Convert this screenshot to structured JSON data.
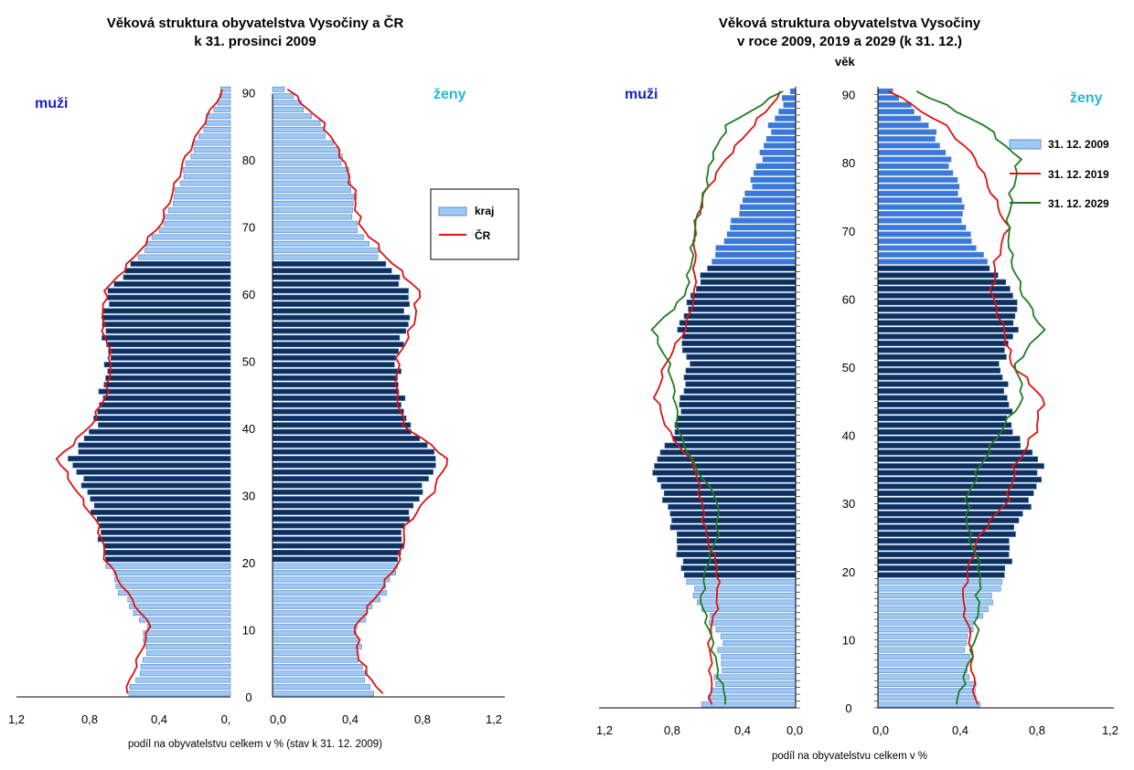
{
  "colors": {
    "bar_light": "#9ec9f5",
    "bar_light_edge": "#5d8fd0",
    "bar_dark": "#0f2f5c",
    "bar_dark_edge": "#2c5f9e",
    "bar_mid": "#3a78dc",
    "line_red": "#e01010",
    "line_green": "#1d7d1d",
    "muzi_label": "#1a22c8",
    "zeny_label": "#27b7d6",
    "axis": "#000000"
  },
  "chart_data": [
    {
      "type": "bar",
      "subtype": "population-pyramid",
      "title": "Věková struktura obyvatelstva Vysočiny a ČR",
      "subtitle": "k 31. prosinci 2009",
      "xlabel": "podíl na obyvatelstvu celkem v % (stav k 31. 12. 2009)",
      "ylabel": "",
      "side_labels": {
        "left": "muži",
        "right": "ženy"
      },
      "left_ticks": [
        "1,2",
        "0,8",
        "0,4",
        "0,"
      ],
      "right_ticks": [
        "0,0",
        "0,4",
        "0,8",
        "1,2"
      ],
      "age_ticks": [
        "0",
        "10",
        "20",
        "30",
        "40",
        "50",
        "60",
        "70",
        "80",
        "90"
      ],
      "xlim": [
        0,
        1.2
      ],
      "ylim": [
        0,
        90
      ],
      "legend_position": "right-upper",
      "grid": false,
      "dark_band_ages": [
        20,
        65
      ],
      "series": [
        {
          "name": "kraj",
          "style": "bars",
          "x": [
            0,
            5,
            10,
            15,
            20,
            25,
            30,
            35,
            40,
            45,
            50,
            55,
            60,
            65,
            70,
            75,
            80,
            85,
            90
          ],
          "male": [
            0.57,
            0.48,
            0.48,
            0.62,
            0.7,
            0.74,
            0.8,
            0.9,
            0.76,
            0.72,
            0.68,
            0.72,
            0.68,
            0.52,
            0.38,
            0.3,
            0.23,
            0.14,
            0.04
          ],
          "female": [
            0.52,
            0.45,
            0.44,
            0.58,
            0.66,
            0.68,
            0.77,
            0.86,
            0.7,
            0.66,
            0.64,
            0.7,
            0.7,
            0.56,
            0.42,
            0.42,
            0.36,
            0.24,
            0.07
          ]
        },
        {
          "name": "ČR",
          "style": "line",
          "x": [
            0,
            5,
            10,
            15,
            20,
            25,
            30,
            35,
            40,
            45,
            50,
            55,
            60,
            65,
            70,
            75,
            80,
            85,
            90
          ],
          "male": [
            0.59,
            0.52,
            0.45,
            0.58,
            0.7,
            0.74,
            0.86,
            0.97,
            0.78,
            0.69,
            0.67,
            0.72,
            0.7,
            0.54,
            0.39,
            0.32,
            0.25,
            0.15,
            0.04
          ],
          "female": [
            0.56,
            0.45,
            0.43,
            0.55,
            0.66,
            0.69,
            0.83,
            0.91,
            0.68,
            0.64,
            0.65,
            0.73,
            0.76,
            0.59,
            0.45,
            0.42,
            0.36,
            0.26,
            0.08
          ]
        }
      ]
    },
    {
      "type": "bar",
      "subtype": "population-pyramid",
      "title": "Věková struktura obyvatelstva Vysočiny",
      "subtitle": "v roce 2009, 2019 a 2029 (k 31. 12.)",
      "xlabel": "podíl na obyvatelstvu celkem v %",
      "ylabel": "věk",
      "side_labels": {
        "left": "muži",
        "right": "ženy"
      },
      "left_ticks": [
        "1,2",
        "0,8",
        "0,4",
        "0,0"
      ],
      "right_ticks": [
        "0,0",
        "0,4",
        "0,8",
        "1,2"
      ],
      "age_ticks": [
        "0",
        "10",
        "20",
        "30",
        "40",
        "50",
        "60",
        "70",
        "80",
        "90"
      ],
      "xlim": [
        0,
        1.2
      ],
      "ylim": [
        0,
        90
      ],
      "legend_position": "right-upper",
      "grid": false,
      "dark_band_ages": [
        19,
        65
      ],
      "series": [
        {
          "name": "31. 12. 2009",
          "style": "bars",
          "x": [
            0,
            5,
            10,
            15,
            20,
            25,
            30,
            35,
            40,
            45,
            50,
            55,
            60,
            65,
            70,
            75,
            80,
            85,
            90
          ],
          "male": [
            0.56,
            0.46,
            0.46,
            0.6,
            0.7,
            0.74,
            0.8,
            0.88,
            0.74,
            0.7,
            0.66,
            0.72,
            0.64,
            0.52,
            0.4,
            0.3,
            0.22,
            0.15,
            0.04
          ],
          "female": [
            0.52,
            0.46,
            0.45,
            0.58,
            0.66,
            0.68,
            0.78,
            0.84,
            0.68,
            0.66,
            0.62,
            0.7,
            0.7,
            0.55,
            0.44,
            0.42,
            0.36,
            0.26,
            0.08
          ]
        },
        {
          "name": "31. 12. 2019",
          "style": "line",
          "x": [
            0,
            5,
            10,
            15,
            20,
            25,
            30,
            35,
            40,
            45,
            50,
            55,
            60,
            65,
            70,
            75,
            80,
            85,
            90
          ],
          "male": [
            0.52,
            0.52,
            0.53,
            0.48,
            0.48,
            0.55,
            0.58,
            0.62,
            0.78,
            0.86,
            0.8,
            0.68,
            0.62,
            0.62,
            0.62,
            0.56,
            0.43,
            0.26,
            0.08
          ],
          "female": [
            0.5,
            0.48,
            0.47,
            0.43,
            0.46,
            0.52,
            0.66,
            0.7,
            0.8,
            0.84,
            0.68,
            0.64,
            0.58,
            0.6,
            0.66,
            0.58,
            0.5,
            0.34,
            0.06
          ]
        },
        {
          "name": "31. 12. 2029",
          "style": "line",
          "x": [
            0,
            5,
            10,
            15,
            20,
            25,
            30,
            35,
            40,
            45,
            50,
            55,
            60,
            65,
            70,
            75,
            80,
            85,
            90
          ],
          "male": [
            0.42,
            0.48,
            0.52,
            0.58,
            0.55,
            0.48,
            0.48,
            0.62,
            0.72,
            0.74,
            0.78,
            0.88,
            0.68,
            0.64,
            0.62,
            0.56,
            0.52,
            0.42,
            0.08
          ],
          "female": [
            0.4,
            0.45,
            0.5,
            0.51,
            0.52,
            0.46,
            0.45,
            0.52,
            0.62,
            0.74,
            0.7,
            0.84,
            0.74,
            0.68,
            0.66,
            0.68,
            0.72,
            0.54,
            0.2
          ]
        }
      ]
    }
  ]
}
